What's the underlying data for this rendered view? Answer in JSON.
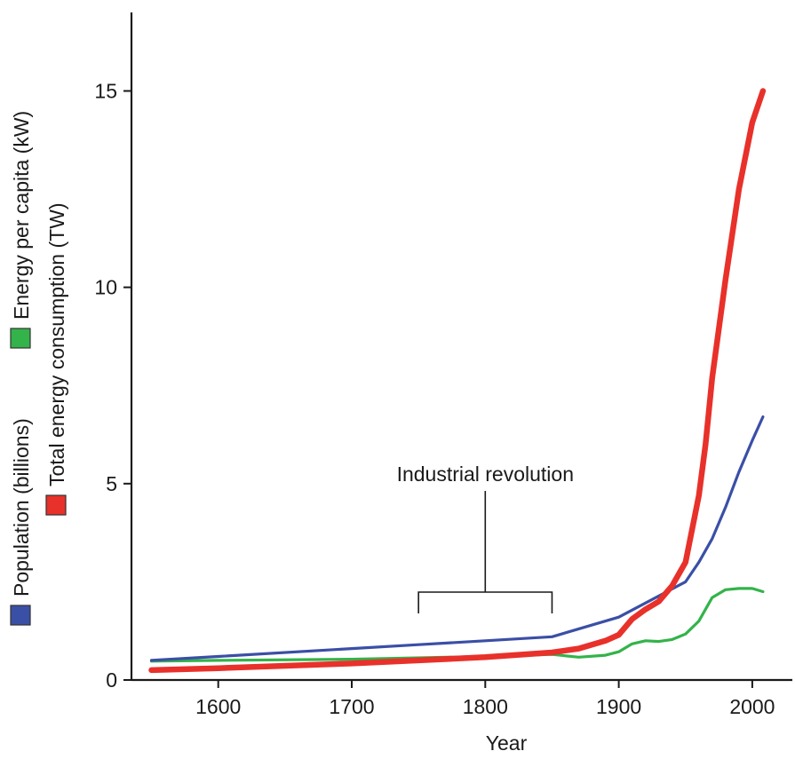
{
  "chart_data": {
    "type": "line",
    "xlabel": "Year",
    "ylabel": "",
    "xlim": [
      1535,
      2030
    ],
    "ylim": [
      0,
      17
    ],
    "x_ticks": [
      1600,
      1700,
      1800,
      1900,
      2000
    ],
    "y_ticks": [
      0,
      5,
      10,
      15
    ],
    "grid": false,
    "legend_placement": "left (vertical)",
    "series": [
      {
        "name": "Population (billions)",
        "color": "#3a4fa6",
        "x": [
          1550,
          1600,
          1700,
          1750,
          1800,
          1850,
          1900,
          1950,
          1960,
          1970,
          1980,
          1990,
          2000,
          2008
        ],
        "values": [
          0.5,
          0.6,
          0.8,
          0.9,
          1.0,
          1.1,
          1.6,
          2.5,
          3.0,
          3.6,
          4.4,
          5.3,
          6.1,
          6.7
        ]
      },
      {
        "name": "Energy per capita (kW)",
        "color": "#33b34a",
        "x": [
          1550,
          1600,
          1700,
          1800,
          1850,
          1870,
          1890,
          1900,
          1910,
          1920,
          1930,
          1940,
          1950,
          1960,
          1970,
          1980,
          1990,
          2000,
          2008
        ],
        "values": [
          0.48,
          0.5,
          0.53,
          0.6,
          0.65,
          0.58,
          0.63,
          0.72,
          0.92,
          1.0,
          0.98,
          1.03,
          1.17,
          1.5,
          2.1,
          2.3,
          2.33,
          2.33,
          2.25
        ]
      },
      {
        "name": "Total energy consumption (TW)",
        "color": "#e8312a",
        "x": [
          1550,
          1600,
          1700,
          1800,
          1850,
          1870,
          1890,
          1900,
          1910,
          1920,
          1930,
          1940,
          1950,
          1960,
          1965,
          1970,
          1980,
          1990,
          2000,
          2008
        ],
        "values": [
          0.25,
          0.3,
          0.42,
          0.58,
          0.7,
          0.8,
          1.0,
          1.15,
          1.55,
          1.8,
          2.0,
          2.4,
          3.0,
          4.7,
          6.0,
          7.7,
          10.2,
          12.5,
          14.2,
          15.0
        ]
      }
    ],
    "annotations": [
      {
        "text": "Industrial revolution",
        "x_start": 1750,
        "x_end": 1850,
        "x_center": 1800
      }
    ]
  }
}
